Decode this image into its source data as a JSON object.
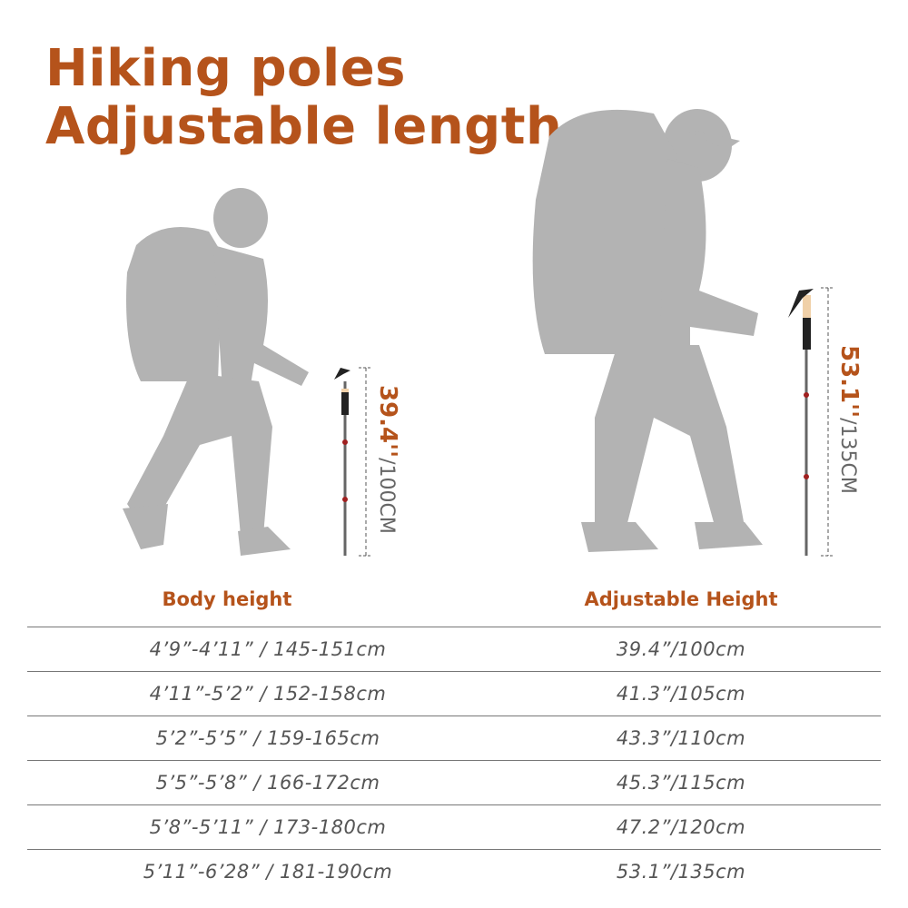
{
  "title": {
    "line1": "Hiking poles",
    "line2": "Adjustable length"
  },
  "poles": [
    {
      "imperial": "39.4''",
      "metric": "/100CM"
    },
    {
      "imperial": "53.1''",
      "metric": "/135CM"
    }
  ],
  "table": {
    "headers": [
      "Body height",
      "Adjustable Height"
    ],
    "rows": [
      [
        "4’9”-4’11” / 145-151cm",
        "39.4”/100cm"
      ],
      [
        "4’11”-5’2” / 152-158cm",
        "41.3”/105cm"
      ],
      [
        "5’2”-5’5” / 159-165cm",
        "43.3”/110cm"
      ],
      [
        "5’5”-5’8” / 166-172cm",
        "45.3”/115cm"
      ],
      [
        "5’8”-5’11” / 173-180cm",
        "47.2”/120cm"
      ],
      [
        "5’11”-6’28” / 181-190cm",
        "53.1”/135cm"
      ]
    ]
  },
  "colors": {
    "accent": "#b5531b",
    "silhouette": "#b3b3b3",
    "text": "#555555"
  }
}
